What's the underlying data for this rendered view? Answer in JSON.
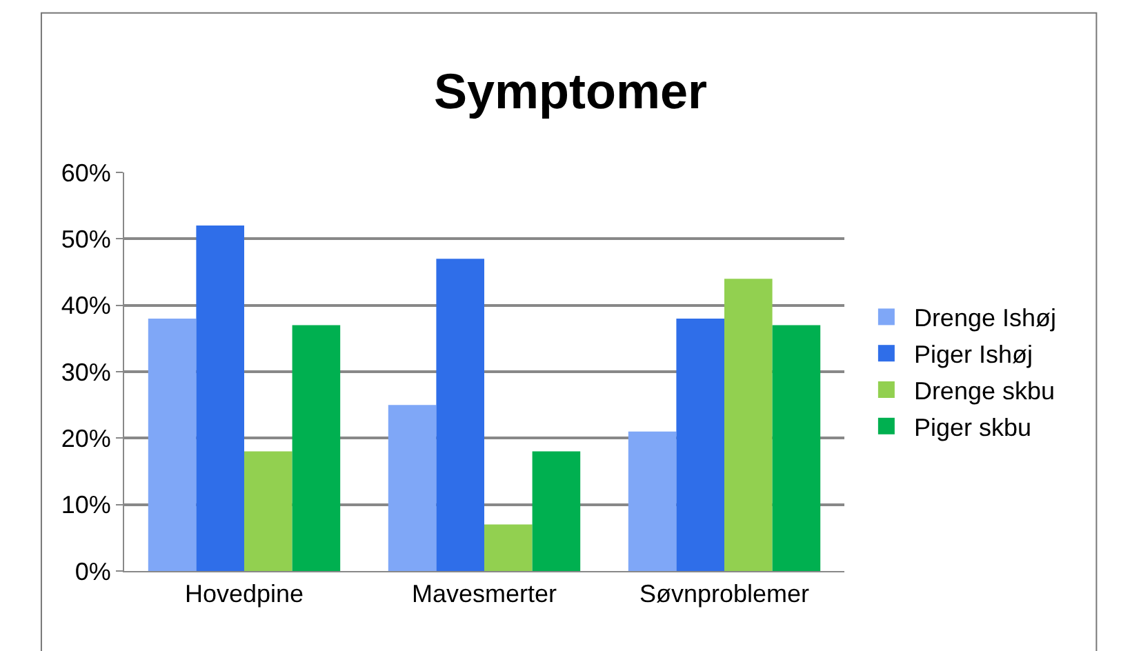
{
  "chart_data": {
    "type": "bar",
    "title": "Symptomer",
    "categories": [
      "Hovedpine",
      "Mavesmerter",
      "Søvnproblemer"
    ],
    "series": [
      {
        "name": "Drenge Ishøj",
        "color": "#7fa7f7",
        "values": [
          38,
          25,
          21
        ]
      },
      {
        "name": "Piger Ishøj",
        "color": "#2f6ee9",
        "values": [
          52,
          47,
          38
        ]
      },
      {
        "name": "Drenge skbu",
        "color": "#92d050",
        "values": [
          18,
          7,
          44
        ]
      },
      {
        "name": "Piger skbu",
        "color": "#00b050",
        "values": [
          37,
          18,
          37
        ]
      }
    ],
    "ylim": [
      0,
      60
    ],
    "yticks": [
      {
        "value": 0,
        "label": "0%"
      },
      {
        "value": 10,
        "label": "10%"
      },
      {
        "value": 20,
        "label": "20%"
      },
      {
        "value": 30,
        "label": "30%"
      },
      {
        "value": 40,
        "label": "40%"
      },
      {
        "value": 50,
        "label": "50%"
      },
      {
        "value": 60,
        "label": "60%"
      }
    ],
    "grid": "y",
    "legend": "right"
  }
}
